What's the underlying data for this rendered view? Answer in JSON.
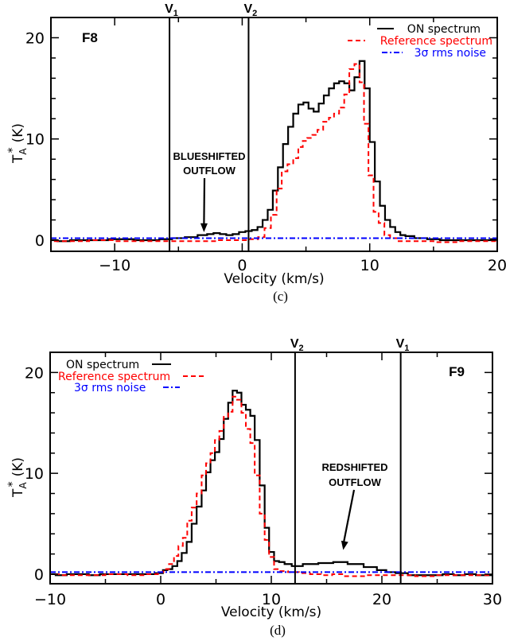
{
  "chart_data": [
    {
      "type": "line",
      "step": true,
      "panel_caption": "(c)",
      "source_label": "F8",
      "xlabel": "Velocity (km/s)",
      "ylabel": {
        "base": "T",
        "sub": "A",
        "sup": "*",
        "unit": "(K)"
      },
      "xlim": [
        -15,
        20
      ],
      "ylim": [
        -1.1,
        22
      ],
      "xticks": [
        -10,
        0,
        10,
        20
      ],
      "xtick_labels": [
        "−10",
        "0",
        "10",
        "20"
      ],
      "yticks": [
        0,
        10,
        20
      ],
      "ytick_labels": [
        "0",
        "10",
        "20"
      ],
      "grid": false,
      "legend_position": "top-right",
      "vlines": [
        {
          "name": "V",
          "sub": "1",
          "x": -5.7
        },
        {
          "name": "V",
          "sub": "2",
          "x": 0.5
        }
      ],
      "annotation": {
        "lines": [
          "BLUESHIFTED",
          "OUTFLOW"
        ],
        "points_to": {
          "x": -3.0,
          "y": 0.8
        }
      },
      "series": [
        {
          "name": "ON spectrum",
          "color": "#000000",
          "style": "solid",
          "x": [
            -15,
            -14,
            -13,
            -12,
            -11,
            -10,
            -9,
            -8,
            -7,
            -6,
            -5,
            -4,
            -3,
            -2.5,
            -2,
            -1.5,
            -1,
            -0.5,
            0,
            0.5,
            1.0,
            1.4,
            1.8,
            2.2,
            2.6,
            3.0,
            3.4,
            3.8,
            4.2,
            4.6,
            5.0,
            5.4,
            5.8,
            6.2,
            6.6,
            7.0,
            7.4,
            7.8,
            8.2,
            8.6,
            9.0,
            9.4,
            9.8,
            10.2,
            10.6,
            11.0,
            11.4,
            11.8,
            12.2,
            12.6,
            13.0,
            14,
            15,
            16,
            17,
            18,
            19,
            20
          ],
          "y": [
            0,
            -0.1,
            0,
            0,
            0,
            0.1,
            0.1,
            0,
            0,
            0.1,
            0.2,
            0.3,
            0.5,
            0.6,
            0.7,
            0.6,
            0.5,
            0.6,
            0.8,
            0.9,
            1.0,
            1.3,
            2.0,
            3.0,
            4.9,
            7.2,
            9.5,
            11.2,
            12.5,
            13.4,
            13.6,
            13.0,
            12.7,
            13.5,
            14.3,
            15.0,
            15.5,
            15.7,
            15.5,
            14.8,
            16.1,
            17.7,
            15.0,
            9.7,
            5.8,
            3.4,
            2.0,
            1.3,
            0.8,
            0.5,
            0.4,
            0.2,
            0.1,
            0,
            0,
            0,
            0,
            0.1
          ]
        },
        {
          "name": "Reference spectrum",
          "color": "#ff0000",
          "style": "dashed",
          "x": [
            -15,
            -13,
            -11,
            -9,
            -7,
            -5,
            -3,
            -1,
            0,
            1,
            1.5,
            2.0,
            2.5,
            2.9,
            3.3,
            3.8,
            4.2,
            4.6,
            4.9,
            5.3,
            5.7,
            6.1,
            6.6,
            7.0,
            7.4,
            7.8,
            8.2,
            8.6,
            9.0,
            9.4,
            9.7,
            10.1,
            10.5,
            10.9,
            11.4,
            11.8,
            12.5,
            14,
            16,
            18,
            20
          ],
          "y": [
            -0.1,
            -0.1,
            0,
            -0.1,
            -0.1,
            -0.1,
            -0.1,
            0,
            0,
            0.1,
            0.3,
            1.2,
            2.5,
            5.1,
            6.8,
            7.5,
            8.1,
            9.2,
            9.8,
            10.1,
            10.4,
            10.9,
            11.7,
            12.1,
            12.5,
            13.1,
            14.4,
            16.9,
            17.4,
            15.6,
            11.5,
            6.4,
            2.8,
            1.7,
            0.5,
            0.2,
            -0.1,
            -0.1,
            -0.2,
            -0.1,
            -0.1
          ]
        },
        {
          "name": "3σ rms noise",
          "color": "#0000ff",
          "style": "dashdot",
          "x": [
            -15,
            20
          ],
          "y": [
            0.2,
            0.2
          ]
        }
      ]
    },
    {
      "type": "line",
      "step": true,
      "panel_caption": "(d)",
      "source_label": "F9",
      "xlabel": "Velocity (km/s)",
      "ylabel": {
        "base": "T",
        "sub": "A",
        "sup": "*",
        "unit": "(K)"
      },
      "xlim": [
        -10,
        30
      ],
      "ylim": [
        -0.95,
        22
      ],
      "xticks": [
        -10,
        0,
        10,
        20,
        30
      ],
      "xtick_labels": [
        "−10",
        "0",
        "10",
        "20",
        "30"
      ],
      "yticks": [
        0,
        10,
        20
      ],
      "ytick_labels": [
        "0",
        "10",
        "20"
      ],
      "grid": false,
      "legend_position": "top-left",
      "vlines": [
        {
          "name": "V",
          "sub": "2",
          "x": 12.15
        },
        {
          "name": "V",
          "sub": "1",
          "x": 21.7
        }
      ],
      "annotation": {
        "lines": [
          "REDSHIFTED",
          "OUTFLOW"
        ],
        "points_to": {
          "x": 16.5,
          "y": 2.4
        }
      },
      "series": [
        {
          "name": "ON spectrum",
          "color": "#000000",
          "style": "solid",
          "x": [
            -10,
            -9,
            -8,
            -7,
            -6,
            -5,
            -4,
            -3,
            -2,
            -1,
            0,
            0.4,
            0.8,
            1.3,
            1.7,
            2.1,
            2.6,
            3.0,
            3.5,
            3.9,
            4.3,
            4.7,
            5.1,
            5.5,
            5.9,
            6.3,
            6.7,
            7.1,
            7.5,
            7.9,
            8.3,
            8.7,
            9.2,
            9.6,
            10.0,
            10.5,
            10.9,
            11.5,
            12.2,
            13.5,
            15.0,
            16.2,
            17.6,
            19.1,
            20.0,
            20.8,
            21.7,
            23,
            24,
            25,
            26,
            27,
            28,
            29,
            30
          ],
          "y": [
            0,
            -0.1,
            0,
            0,
            -0.1,
            0,
            0,
            0,
            0,
            0,
            0.1,
            0.4,
            0.5,
            0.8,
            1.3,
            2.1,
            3.2,
            5.0,
            6.7,
            8.3,
            10.1,
            11.3,
            12.1,
            13.4,
            15.4,
            17.0,
            18.2,
            18.0,
            16.8,
            16.3,
            15.7,
            13.3,
            8.8,
            4.6,
            2.2,
            1.3,
            1.2,
            1.0,
            0.8,
            1.0,
            1.1,
            1.2,
            1.0,
            0.7,
            0.4,
            0.2,
            0.1,
            -0.1,
            -0.1,
            -0.1,
            0,
            -0.1,
            0,
            -0.1,
            -0.1
          ]
        },
        {
          "name": "Reference spectrum",
          "color": "#ff0000",
          "style": "dashed",
          "x": [
            -10,
            -8,
            -6,
            -4,
            -2,
            -0.5,
            0,
            0.5,
            1.0,
            1.4,
            1.8,
            2.2,
            2.6,
            3.0,
            3.5,
            3.9,
            4.3,
            4.7,
            5.1,
            5.5,
            5.9,
            6.3,
            6.7,
            7.1,
            7.5,
            7.9,
            8.3,
            8.7,
            9.2,
            9.6,
            10.0,
            10.5,
            11,
            12,
            13,
            14,
            15,
            16,
            17,
            18,
            19,
            20,
            22,
            24,
            26,
            28,
            30
          ],
          "y": [
            0,
            -0.1,
            -0.1,
            0,
            -0.1,
            0,
            0.2,
            0.5,
            1.0,
            1.8,
            2.8,
            3.6,
            5.3,
            6.6,
            8.0,
            9.8,
            11.0,
            12.0,
            13.3,
            14.2,
            15.6,
            16.1,
            17.6,
            17.3,
            16.0,
            14.4,
            13.0,
            9.8,
            6.0,
            3.4,
            1.7,
            0.5,
            0.3,
            0.2,
            0.1,
            0,
            -0.1,
            0,
            -0.2,
            -0.2,
            -0.1,
            -0.1,
            -0.1,
            -0.2,
            -0.1,
            -0.1,
            -0.1
          ]
        },
        {
          "name": "3σ rms noise",
          "color": "#0000ff",
          "style": "dashdot",
          "x": [
            -10,
            30
          ],
          "y": [
            0.2,
            0.2
          ]
        }
      ]
    }
  ]
}
